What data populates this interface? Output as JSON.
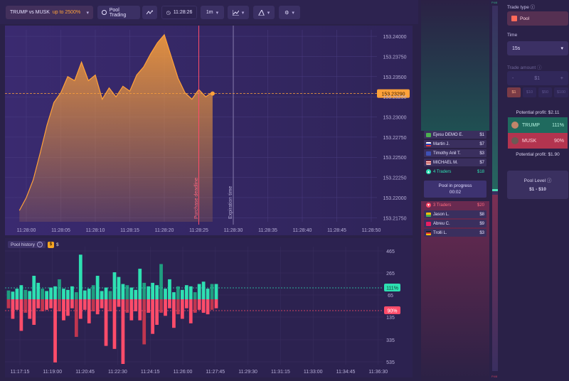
{
  "toolbar": {
    "asset": "TRUMP vs MUSK",
    "asset_upto": "up to 2500%",
    "pool_trading": "Pool Trading",
    "clock": "11:28:26",
    "timeframe": "1m"
  },
  "main_chart": {
    "price_labels": [
      "153.24000",
      "153.23750",
      "153.23500",
      "153.23250",
      "153.23000",
      "153.22750",
      "153.22500",
      "153.22250",
      "153.22000",
      "153.21750"
    ],
    "current_price": "153.23290",
    "time_labels": [
      "11:28:00",
      "11:28:05",
      "11:28:10",
      "11:28:15",
      "11:28:20",
      "11:28:25",
      "11:28:30",
      "11:28:35",
      "11:28:40",
      "11:28:45",
      "11:28:50"
    ],
    "purchase_deadline": "Purchase deadline",
    "expiration_time": "Expiration time"
  },
  "chart_data": [
    {
      "type": "area",
      "title": "",
      "x": [
        "11:27:59",
        "11:28:00",
        "11:28:01",
        "11:28:02",
        "11:28:03",
        "11:28:04",
        "11:28:05",
        "11:28:06",
        "11:28:07",
        "11:28:08",
        "11:28:09",
        "11:28:10",
        "11:28:11",
        "11:28:12",
        "11:28:13",
        "11:28:14",
        "11:28:15",
        "11:28:16",
        "11:28:17",
        "11:28:18",
        "11:28:19",
        "11:28:20",
        "11:28:21",
        "11:28:22",
        "11:28:23",
        "11:28:24",
        "11:28:25",
        "11:28:26",
        "11:28:27"
      ],
      "series": [
        {
          "values": [
            153.2184,
            153.22,
            153.2222,
            153.2255,
            153.229,
            153.2318,
            153.233,
            153.235,
            153.2345,
            153.2368,
            153.2345,
            153.2352,
            153.2322,
            153.2336,
            153.2325,
            153.2338,
            153.2332,
            153.2352,
            153.2362,
            153.2378,
            153.2392,
            153.2402,
            153.2375,
            153.2348,
            153.233,
            153.2322,
            153.2334,
            153.2325,
            153.2331
          ]
        }
      ],
      "ylim": [
        153.217,
        153.2408
      ],
      "current_value": 153.2329
    },
    {
      "type": "bar",
      "title": "Pool history",
      "x_labels": [
        "11:17:15",
        "11:19:00",
        "11:20:45",
        "11:22:30",
        "11:24:15",
        "11:26:00",
        "11:27:45",
        "11:29:30",
        "11:31:15",
        "11:33:00",
        "11:34:45",
        "11:36:30"
      ],
      "y_labels": [
        "465",
        "265",
        "65",
        "135",
        "335",
        "535"
      ],
      "series": [
        {
          "name": "TRUMP",
          "values": [
            75,
            65,
            90,
            120,
            80,
            70,
            200,
            140,
            90,
            70,
            100,
            110,
            170,
            90,
            80,
            110,
            60,
            380,
            75,
            90,
            120,
            200,
            70,
            100,
            70,
            230,
            190,
            130,
            120,
            100,
            80,
            260,
            140,
            110,
            140,
            120,
            300,
            90,
            170,
            60,
            110,
            80,
            120,
            110,
            60,
            130,
            150,
            90,
            130,
            130
          ]
        },
        {
          "name": "MUSK",
          "values": [
            60,
            130,
            70,
            210,
            90,
            130,
            170,
            60,
            80,
            70,
            60,
            420,
            80,
            140,
            110,
            60,
            250,
            130,
            70,
            160,
            80,
            100,
            60,
            310,
            80,
            330,
            50,
            430,
            90,
            140,
            80,
            140,
            300,
            90,
            230,
            170,
            90,
            110,
            60,
            190,
            100,
            130,
            60,
            160,
            90,
            70,
            90,
            100,
            70,
            60
          ]
        }
      ],
      "trump_pct": "111%",
      "musk_pct": "90%"
    }
  ],
  "history": {
    "title": "Pool history",
    "info": "i",
    "coin": "$",
    "dollar": "$"
  },
  "traders": {
    "trump_list": [
      {
        "name": "Ejesu DEMO E.",
        "amount": "$1",
        "flag": "#4caf50"
      },
      {
        "name": "Martin J.",
        "amount": "$7",
        "flag": "#e53935"
      },
      {
        "name": "Timothy Anil T.",
        "amount": "$3",
        "flag": "#3f51b5"
      },
      {
        "name": "MICHAEL M.",
        "amount": "$7",
        "flag": "#b71c1c"
      }
    ],
    "trump_summary": {
      "label": "4 Traders",
      "amount": "$18"
    },
    "pool_progress": "Pool in progress",
    "countdown": "00:02",
    "musk_summary": {
      "label": "3 Traders",
      "amount": "$20"
    },
    "musk_list": [
      {
        "name": "Jason L.",
        "amount": "$8",
        "flag": "#ffc107"
      },
      {
        "name": "Abreu C.",
        "amount": "$9",
        "flag": "#e91e63"
      },
      {
        "name": "Trolli L.",
        "amount": "$3",
        "flag": "#ff5722"
      }
    ]
  },
  "scale": {
    "top": "P4/8",
    "bottom": "P4/8"
  },
  "panel": {
    "trade_type_label": "Trade type",
    "trade_type": "Pool",
    "time_label": "Time",
    "time_value": "15s",
    "amount_label": "Trade amount",
    "amount_value": "$1",
    "minus": "-",
    "plus": "+",
    "quick_amounts": [
      "$1",
      "$10",
      "$50",
      "$100"
    ],
    "potential_profit_1": "Potential profit: $2.11",
    "trump_label": "TRUMP",
    "trump_pct": "111%",
    "musk_label": "MUSK",
    "musk_pct": "90%",
    "potential_profit_2": "Potential profit: $1.90",
    "pool_level_label": "Pool Level",
    "pool_level_value": "$1 - $10"
  },
  "colors": {
    "trump_green": "#2ee0b2",
    "musk_red": "#ff4c6a",
    "price_orange": "#ffa23a"
  }
}
